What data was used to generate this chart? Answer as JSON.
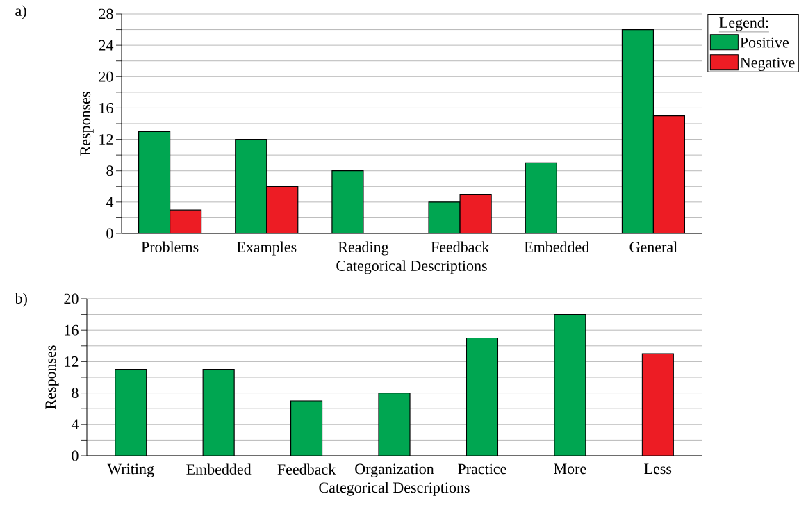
{
  "chart_data": [
    {
      "type": "bar",
      "categories": [
        "Problems",
        "Examples",
        "Reading",
        "Feedback",
        "Embedded",
        "General"
      ],
      "series": [
        {
          "name": "Positive",
          "color": "#00a651",
          "values": [
            13,
            12,
            8,
            4,
            9,
            26
          ]
        },
        {
          "name": "Negative",
          "color": "#ed1c24",
          "values": [
            3,
            6,
            null,
            5,
            null,
            15
          ]
        }
      ],
      "ylim": [
        0,
        28
      ],
      "yticks": [
        0,
        {
          "value": 2,
          "label": null
        },
        4,
        {
          "value": 6,
          "label": null
        },
        8,
        {
          "value": 10,
          "label": null
        },
        12,
        {
          "value": 14,
          "label": null
        },
        16,
        {
          "value": 18,
          "label": null
        },
        20,
        {
          "value": 22,
          "label": null
        },
        24,
        {
          "value": 26,
          "label": null
        },
        28
      ],
      "xlabel": "Categorical Descriptions",
      "ylabel": "Responses",
      "legend": "top right",
      "legend_title": "Legend:",
      "grid": "y",
      "annotations": [
        "a)"
      ]
    },
    {
      "type": "bar",
      "categories": [
        "Writing",
        "Embedded",
        "Feedback",
        "Organization",
        "Practice",
        "More",
        "Less"
      ],
      "values": [
        11,
        11,
        7,
        8,
        15,
        18,
        13
      ],
      "colors": [
        "#00a651",
        "#00a651",
        "#00a651",
        "#00a651",
        "#00a651",
        "#00a651",
        "#ed1c24"
      ],
      "ylim": [
        0,
        20
      ],
      "yticks": [
        0,
        {
          "value": 2,
          "label": null
        },
        4,
        {
          "value": 6,
          "label": null
        },
        8,
        {
          "value": 10,
          "label": null
        },
        12,
        {
          "value": 14,
          "label": null
        },
        16,
        {
          "value": 18,
          "label": null
        },
        20
      ],
      "xlabel": "Categorical Descriptions",
      "ylabel": "Responses",
      "grid": "y",
      "annotations": [
        "b)"
      ]
    }
  ]
}
